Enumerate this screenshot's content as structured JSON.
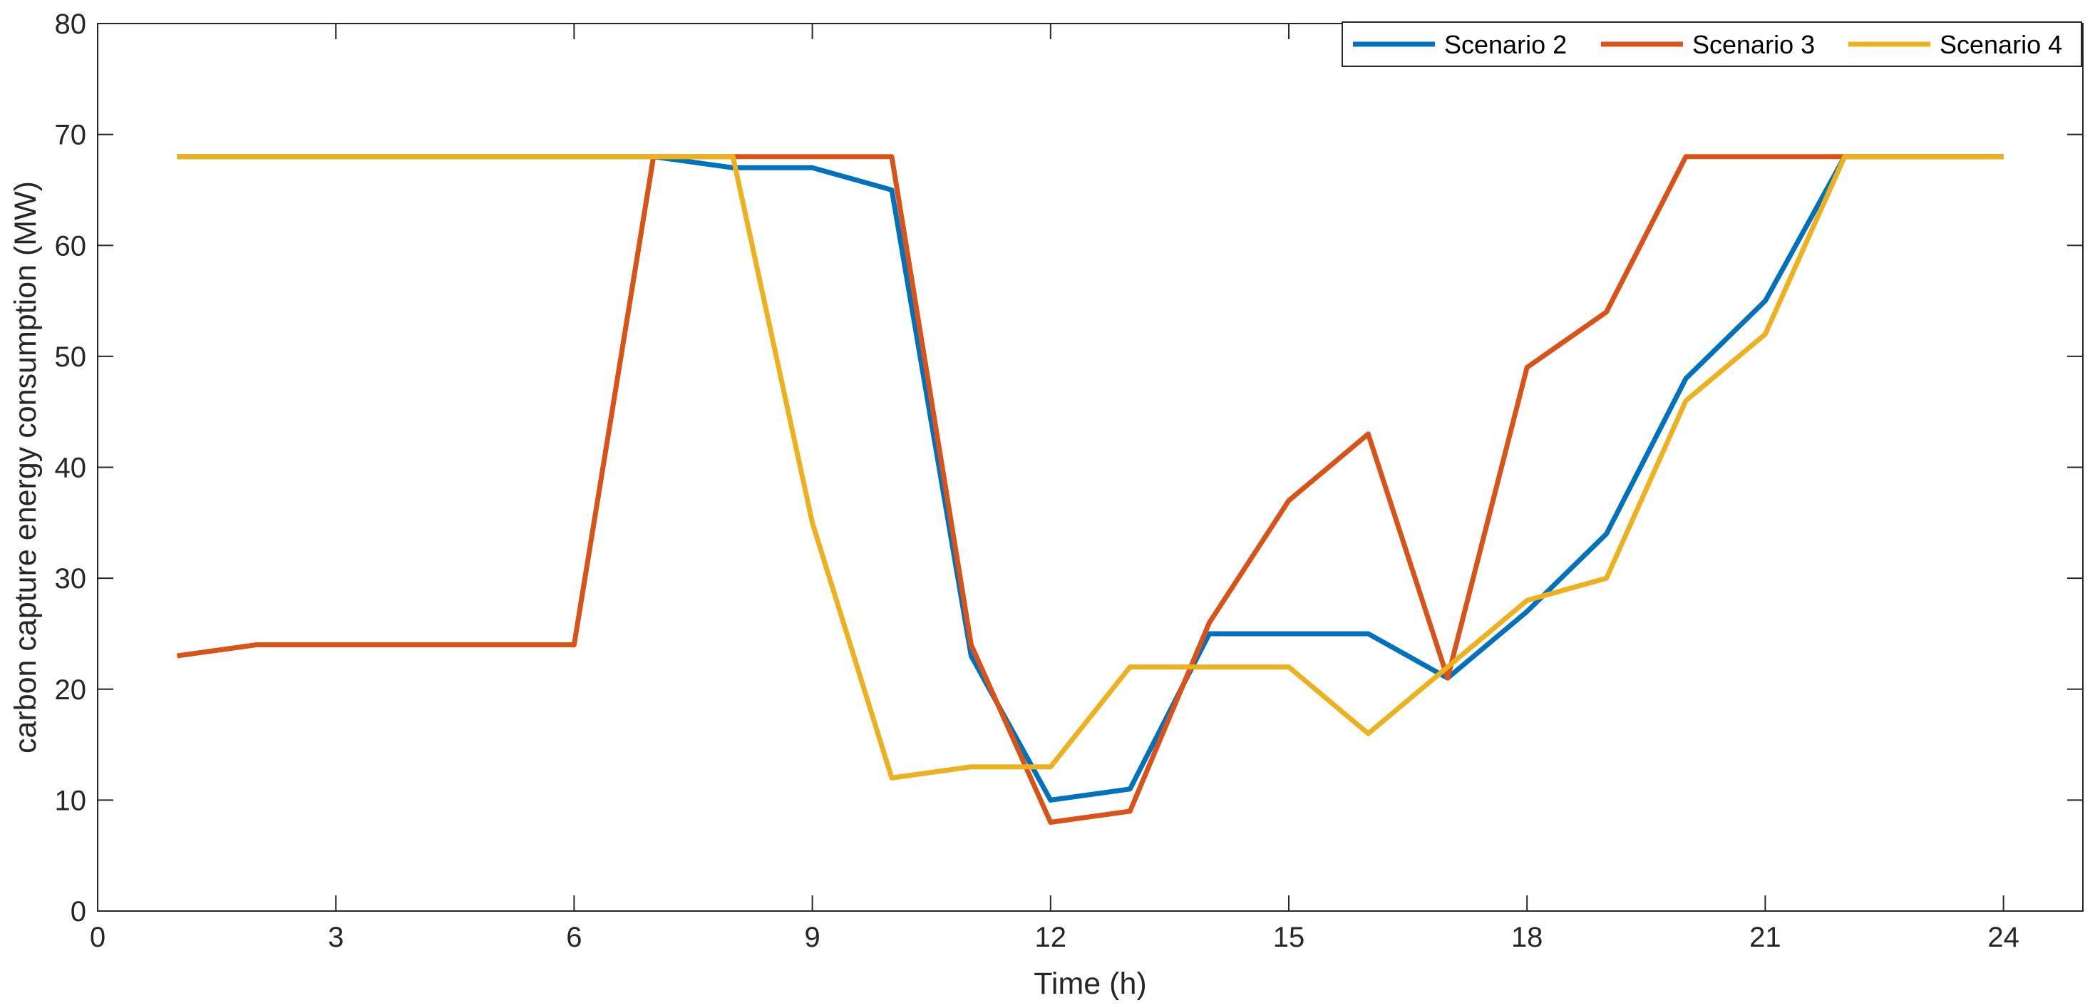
{
  "chart_data": {
    "type": "line",
    "title": "",
    "xlabel": "Time (h)",
    "ylabel": "carbon capture energy consumption (MW)",
    "xlim": [
      0,
      25
    ],
    "ylim": [
      0,
      80
    ],
    "xticks": [
      0,
      3,
      6,
      9,
      12,
      15,
      18,
      21,
      24
    ],
    "yticks": [
      0,
      10,
      20,
      30,
      40,
      50,
      60,
      70,
      80
    ],
    "grid": false,
    "legend_position": "top-right",
    "x": [
      1,
      2,
      3,
      4,
      5,
      6,
      7,
      8,
      9,
      10,
      11,
      12,
      13,
      14,
      15,
      16,
      17,
      18,
      19,
      20,
      21,
      22,
      23,
      24
    ],
    "series": [
      {
        "name": "Scenario 2",
        "color": "#0072BD",
        "values": [
          68,
          68,
          68,
          68,
          68,
          68,
          68,
          67,
          67,
          65,
          23,
          10,
          11,
          25,
          25,
          25,
          21,
          27,
          34,
          48,
          55,
          68,
          68,
          68
        ]
      },
      {
        "name": "Scenario 3",
        "color": "#D95319",
        "values": [
          23,
          24,
          24,
          24,
          24,
          24,
          68,
          68,
          68,
          68,
          24,
          8,
          9,
          26,
          37,
          43,
          21,
          49,
          54,
          68,
          68,
          68,
          68,
          68
        ]
      },
      {
        "name": "Scenario 4",
        "color": "#EDB120",
        "values": [
          68,
          68,
          68,
          68,
          68,
          68,
          68,
          68,
          35,
          12,
          13,
          13,
          22,
          22,
          22,
          16,
          22,
          28,
          30,
          46,
          52,
          68,
          68,
          68
        ]
      }
    ]
  }
}
